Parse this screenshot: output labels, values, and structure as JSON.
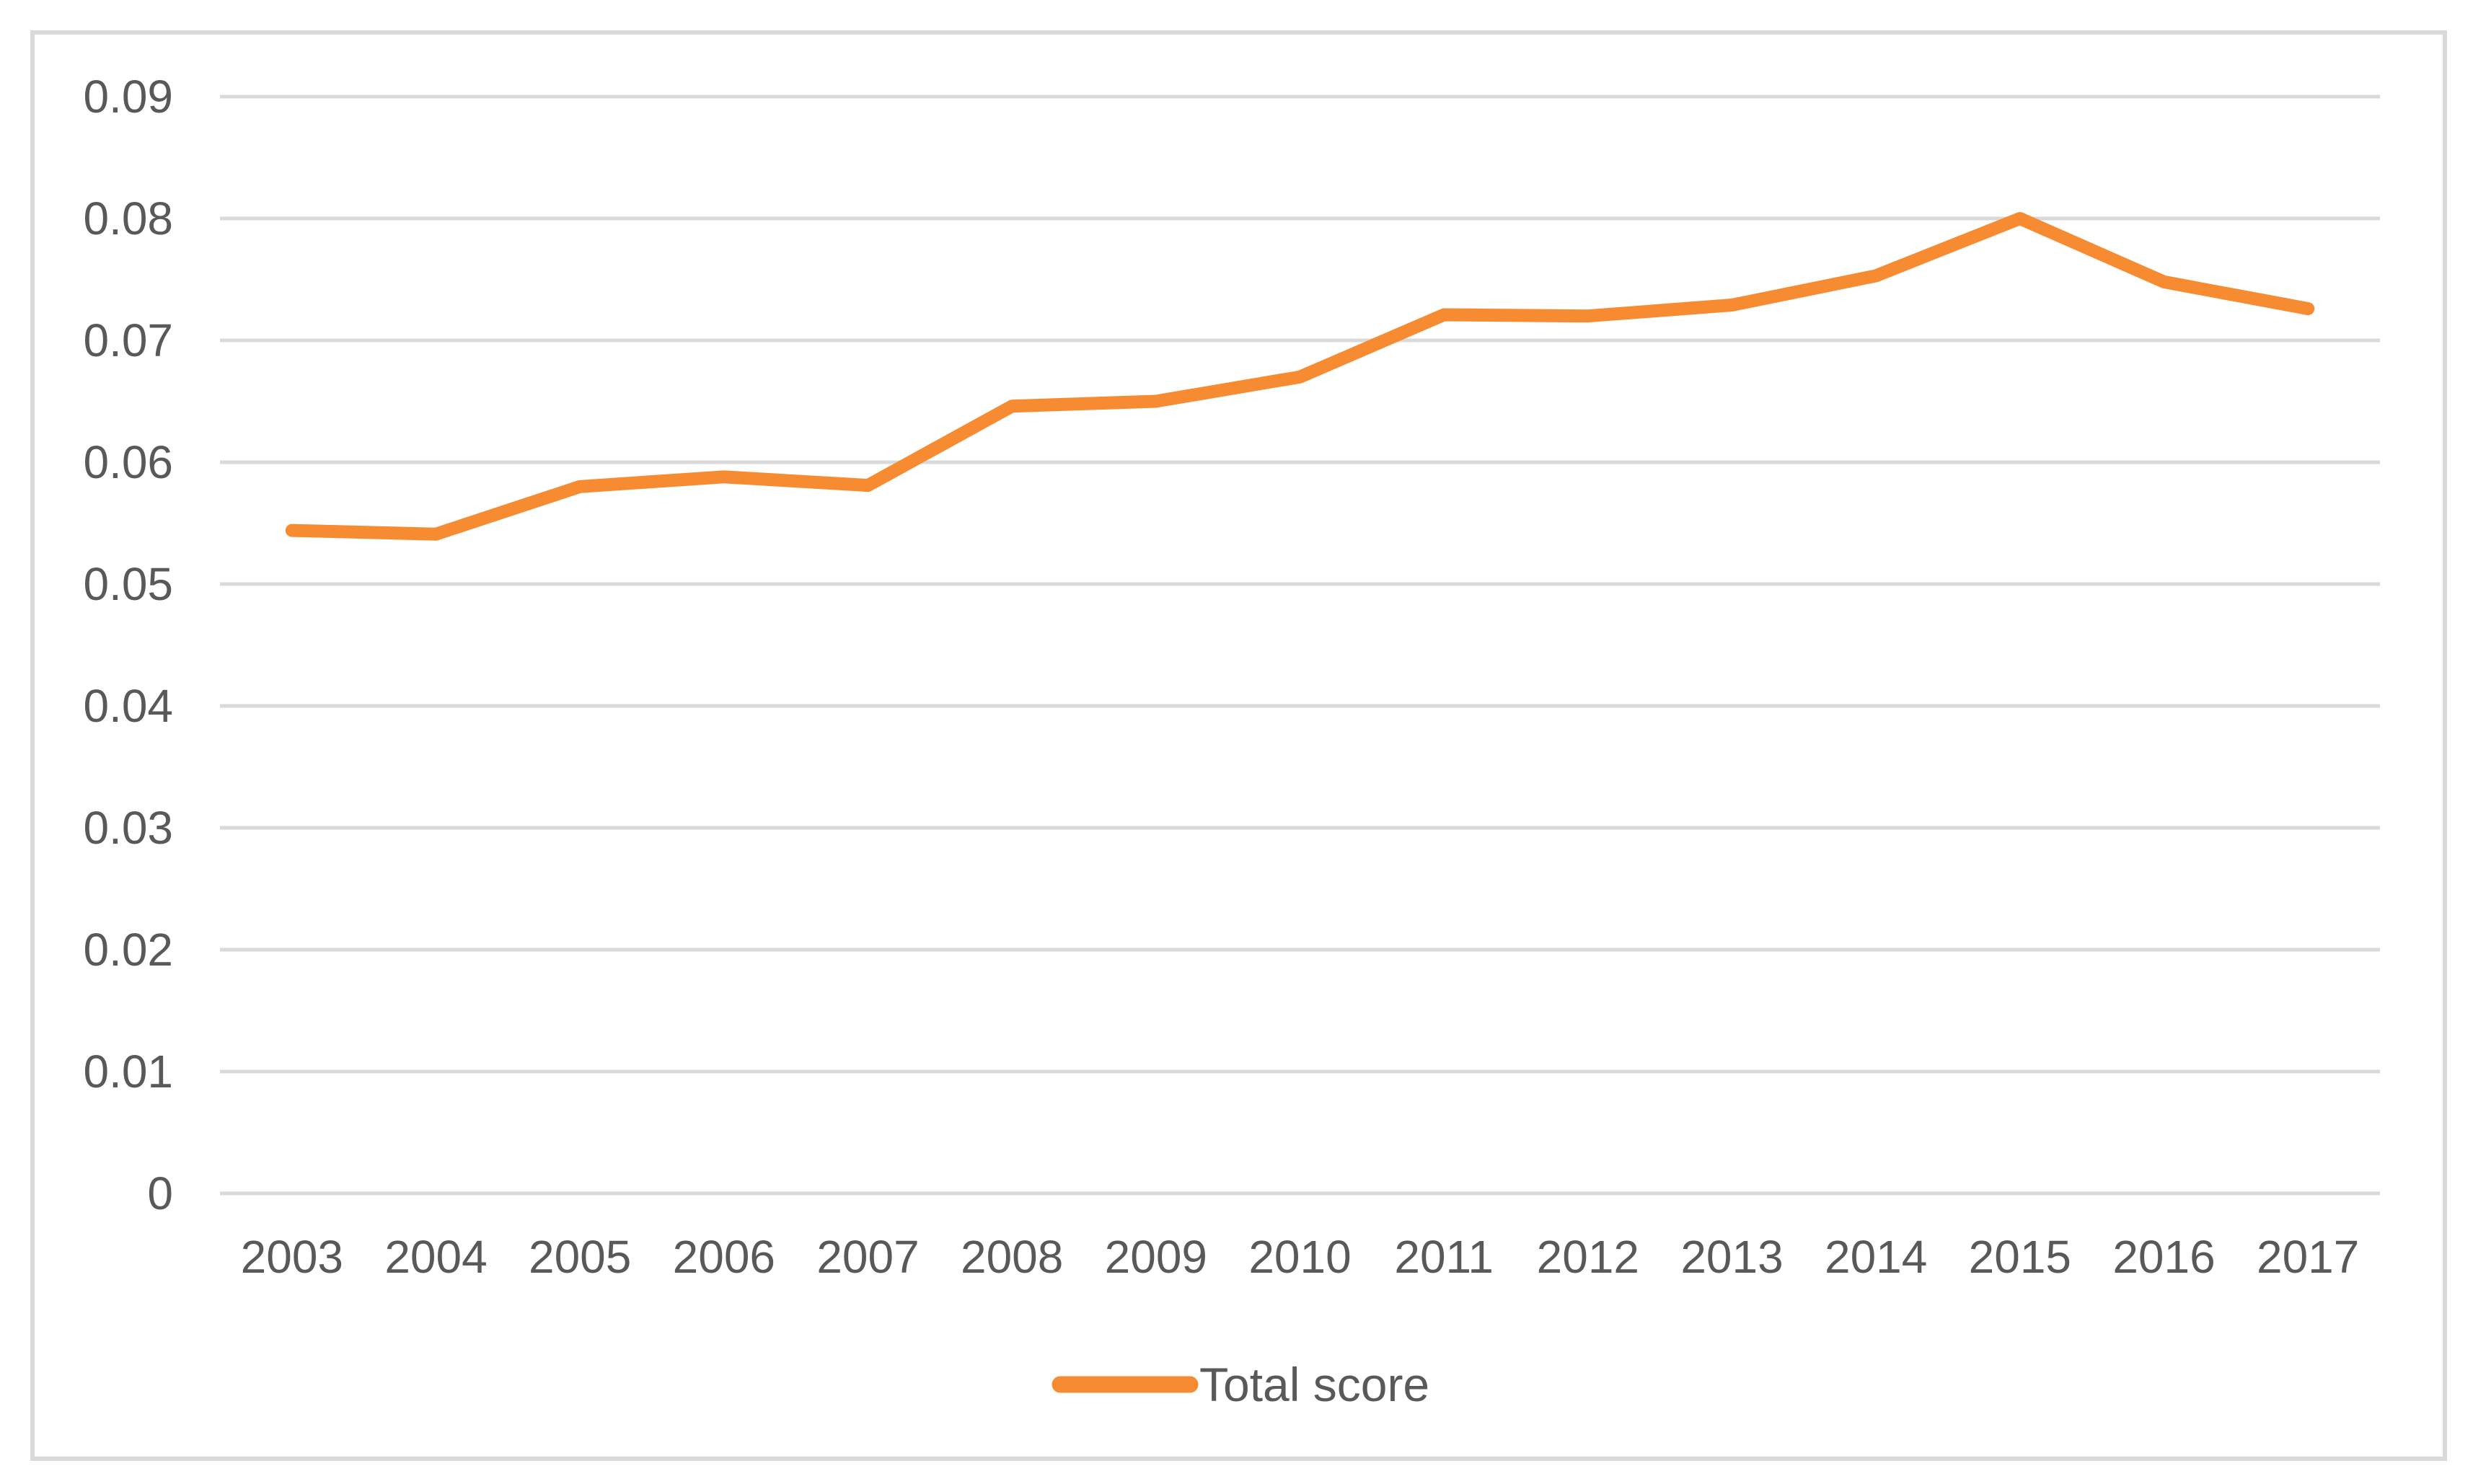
{
  "chart_data": {
    "type": "line",
    "title": "",
    "xlabel": "",
    "ylabel": "",
    "categories": [
      "2003",
      "2004",
      "2005",
      "2006",
      "2007",
      "2008",
      "2009",
      "2010",
      "2011",
      "2012",
      "2013",
      "2014",
      "2015",
      "2016",
      "2017"
    ],
    "series": [
      {
        "name": "Total score",
        "values": [
          0.0544,
          0.0541,
          0.058,
          0.0588,
          0.0581,
          0.0646,
          0.065,
          0.067,
          0.0721,
          0.072,
          0.0729,
          0.0753,
          0.08,
          0.0748,
          0.0726
        ]
      }
    ],
    "ylim": [
      0,
      0.09
    ],
    "y_tick_values": [
      0,
      0.01,
      0.02,
      0.03,
      0.04,
      0.05,
      0.06,
      0.07,
      0.08,
      0.09
    ],
    "y_tick_labels": [
      "0",
      "0.01",
      "0.02",
      "0.03",
      "0.04",
      "0.05",
      "0.06",
      "0.07",
      "0.08",
      "0.09"
    ],
    "grid": "horizontal",
    "legend_position": "bottom-center",
    "colors": {
      "series_line": "#F78B32",
      "gridline": "#D9D9D9",
      "chart_border": "#D9D9D9",
      "tick_label_text": "#595959",
      "legend_text": "#595959",
      "background": "#FFFFFF"
    }
  }
}
